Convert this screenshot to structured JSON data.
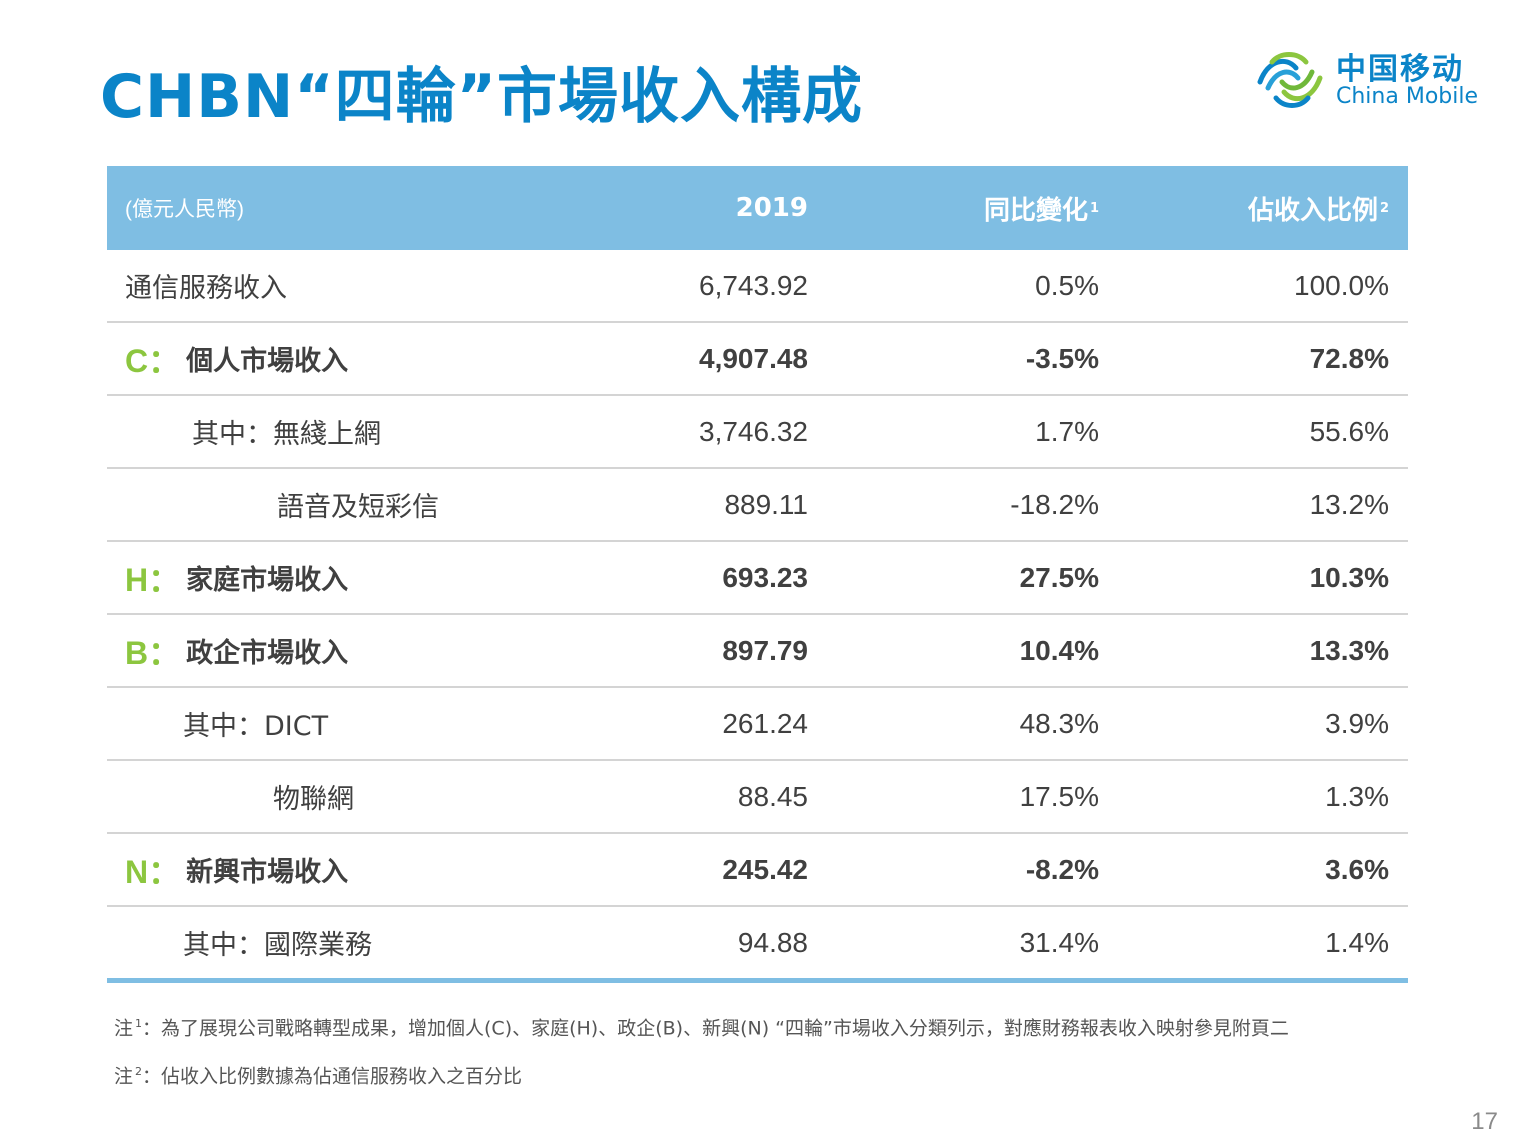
{
  "title": "CHBN“四輪”市場收入構成",
  "logo": {
    "cn": "中国移动",
    "en": "China Mobile"
  },
  "table": {
    "unit": "(億元人民幣)",
    "headers": {
      "year": "2019",
      "yoy": "同比變化",
      "yoy_note": "1",
      "share": "佔收入比例",
      "share_note": "2"
    },
    "rows": [
      {
        "letter": "",
        "label": "通信服務收入",
        "value": "6,743.92",
        "yoy": "0.5%",
        "share": "100.0%"
      },
      {
        "letter": "C：",
        "label": "個人市場收入",
        "value": "4,907.48",
        "yoy": "-3.5%",
        "share": "72.8%"
      },
      {
        "letter": "",
        "label": "其中：無綫上網",
        "value": "3,746.32",
        "yoy": "1.7%",
        "share": "55.6%"
      },
      {
        "letter": "",
        "label": "語音及短彩信",
        "value": "889.11",
        "yoy": "-18.2%",
        "share": "13.2%"
      },
      {
        "letter": "H：",
        "label": "家庭市場收入",
        "value": "693.23",
        "yoy": "27.5%",
        "share": "10.3%"
      },
      {
        "letter": "B：",
        "label": "政企市場收入",
        "value": "897.79",
        "yoy": "10.4%",
        "share": "13.3%"
      },
      {
        "letter": "",
        "label": "其中：DICT",
        "value": "261.24",
        "yoy": "48.3%",
        "share": "3.9%"
      },
      {
        "letter": "",
        "label": "物聯網",
        "value": "88.45",
        "yoy": "17.5%",
        "share": "1.3%"
      },
      {
        "letter": "N：",
        "label": "新興市場收入",
        "value": "245.42",
        "yoy": "-8.2%",
        "share": "3.6%"
      },
      {
        "letter": "",
        "label": "其中：國際業務",
        "value": "94.88",
        "yoy": "31.4%",
        "share": "1.4%"
      }
    ]
  },
  "notes": [
    {
      "prefix": "注",
      "mark": "1",
      "text": "：為了展現公司戰略轉型成果，增加個人(C)、家庭(H)、政企(B)、新興(N) “四輪”市場收入分類列示，對應財務報表收入映射參見附頁二"
    },
    {
      "prefix": "注",
      "mark": "2",
      "text": "：佔收入比例數據為佔通信服務收入之百分比"
    }
  ],
  "page_number": "17",
  "colors": {
    "title": "#0b84c8",
    "header_bg": "#7fbee3",
    "letter": "#8cc63f",
    "divider": "#d4d4d4"
  },
  "icons": {
    "logo": "china-mobile-logo-icon"
  }
}
